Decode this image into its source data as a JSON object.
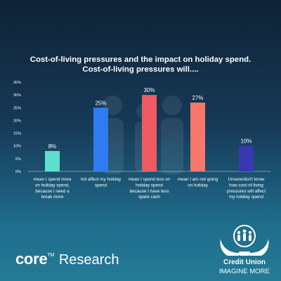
{
  "chart_data": {
    "type": "bar",
    "title_lines": [
      "Cost-of-living pressures and the impact on holiday spend.",
      "Cost-of-living pressures will...."
    ],
    "categories": [
      [
        "mean I spend more",
        "on holiday spend,",
        "because I need a",
        "break more"
      ],
      [
        "not affect my holiday",
        "spend"
      ],
      [
        "mean I spend less on",
        "holiday spend",
        "because I have less",
        "spare cash"
      ],
      [
        "mean I am not going",
        "on holiday"
      ],
      [
        "Unsure/don't know",
        "how cost-of-living",
        "pressures will affect",
        "my holiday spend"
      ]
    ],
    "values": [
      8,
      25,
      30,
      27,
      10
    ],
    "data_labels": [
      "8%",
      "25%",
      "30%",
      "27%",
      "10%"
    ],
    "bar_colors": [
      "#5ee0cc",
      "#2f7cf0",
      "#f05a63",
      "#f8776a",
      "#3a38b0"
    ],
    "y_ticks": [
      "0%",
      "5%",
      "10%",
      "15%",
      "20%",
      "25%",
      "30%",
      "35%"
    ],
    "ylim": [
      0,
      35
    ],
    "grid": false,
    "legend": "none"
  },
  "branding": {
    "core_word": "core",
    "core_tm": "TM",
    "core_research": "Research",
    "cu_name": "Credit Union",
    "cu_tagline": "IMAGINE MORE"
  }
}
